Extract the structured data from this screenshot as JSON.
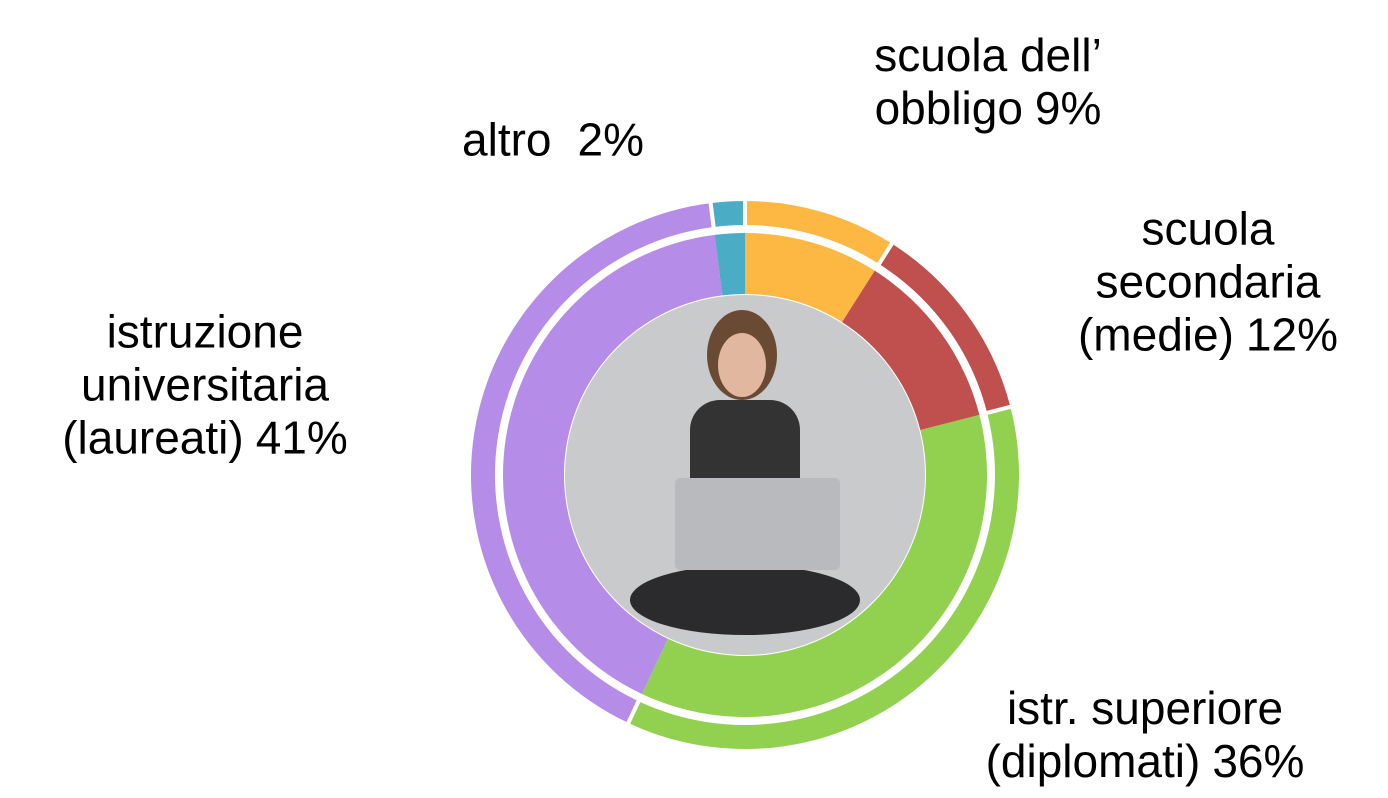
{
  "chart_data": {
    "type": "donut",
    "categories": [
      "altro",
      "scuola dell’\nobbligo",
      "scuola\nsecondaria\n(medie)",
      "istr. superiore\n(diplomati)",
      "istruzione\nuniversitaria\n(laureati)"
    ],
    "values": [
      2,
      9,
      12,
      36,
      41
    ],
    "value_labels": [
      "2%",
      "9%",
      "12%",
      "36%",
      "41%"
    ],
    "colors": [
      "#4bacc6",
      "#fdb843",
      "#c0504d",
      "#92d050",
      "#b58de8"
    ]
  }
}
